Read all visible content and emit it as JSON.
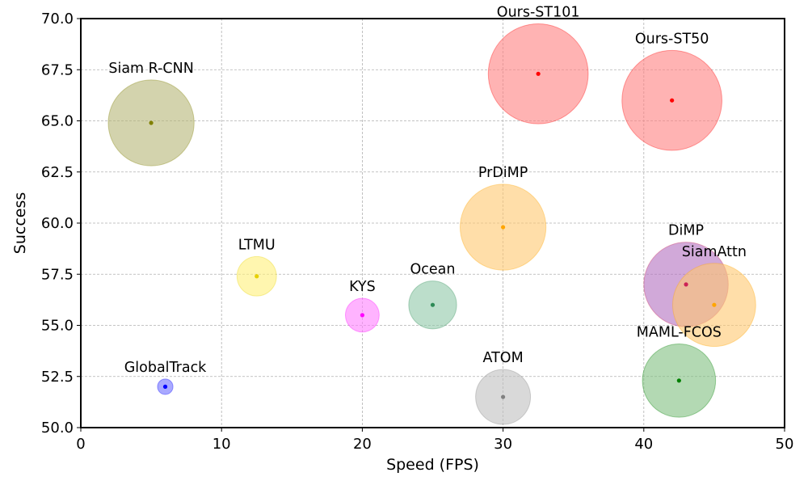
{
  "chart_data": {
    "type": "scatter",
    "title": "",
    "xlabel": "Speed (FPS)",
    "ylabel": "Success",
    "xlim": [
      0,
      50
    ],
    "ylim": [
      50,
      70
    ],
    "xticks": [
      0,
      10,
      20,
      30,
      40,
      50
    ],
    "yticks": [
      50.0,
      52.5,
      55.0,
      57.5,
      60.0,
      62.5,
      65.0,
      67.5,
      70.0
    ],
    "ytick_labels": [
      "50.0",
      "52.5",
      "55.0",
      "57.5",
      "60.0",
      "62.5",
      "65.0",
      "67.5",
      "70.0"
    ],
    "grid": true,
    "points": [
      {
        "label": "Ours-ST101",
        "x": 32.5,
        "y": 67.3,
        "bubble_radius_units": 3.55,
        "color": "#ff0000",
        "fill": "#ff8080"
      },
      {
        "label": "Ours-ST50",
        "x": 42.0,
        "y": 66.0,
        "bubble_radius_units": 3.55,
        "color": "#ff0000",
        "fill": "#ff8080"
      },
      {
        "label": "Siam R-CNN",
        "x": 5.0,
        "y": 64.9,
        "bubble_radius_units": 3.05,
        "color": "#808000",
        "fill": "#b5b577"
      },
      {
        "label": "PrDiMP",
        "x": 30.0,
        "y": 59.8,
        "bubble_radius_units": 3.05,
        "color": "#ffa500",
        "fill": "#ffc870"
      },
      {
        "label": "DiMP",
        "x": 43.0,
        "y": 57.0,
        "bubble_radius_units": 3.0,
        "color": "#cc2255",
        "fill": "#b270c0"
      },
      {
        "label": "SiamAttn",
        "x": 45.0,
        "y": 56.0,
        "bubble_radius_units": 2.95,
        "color": "#ffa500",
        "fill": "#ffc870"
      },
      {
        "label": "LTMU",
        "x": 12.5,
        "y": 57.4,
        "bubble_radius_units": 1.4,
        "color": "#e6d000",
        "fill": "#fff07a"
      },
      {
        "label": "KYS",
        "x": 20.0,
        "y": 55.5,
        "bubble_radius_units": 1.2,
        "color": "#ff00ff",
        "fill": "#ff80ff"
      },
      {
        "label": "Ocean",
        "x": 25.0,
        "y": 56.0,
        "bubble_radius_units": 1.7,
        "color": "#2e8b57",
        "fill": "#90c8a8"
      },
      {
        "label": "GlobalTrack",
        "x": 6.0,
        "y": 52.0,
        "bubble_radius_units": 0.55,
        "color": "#0000ff",
        "fill": "#7070ff"
      },
      {
        "label": "ATOM",
        "x": 30.0,
        "y": 51.5,
        "bubble_radius_units": 1.95,
        "color": "#808080",
        "fill": "#c0c0c0"
      },
      {
        "label": "MAML-FCOS",
        "x": 42.5,
        "y": 52.3,
        "bubble_radius_units": 2.6,
        "color": "#008000",
        "fill": "#80c080"
      }
    ]
  }
}
